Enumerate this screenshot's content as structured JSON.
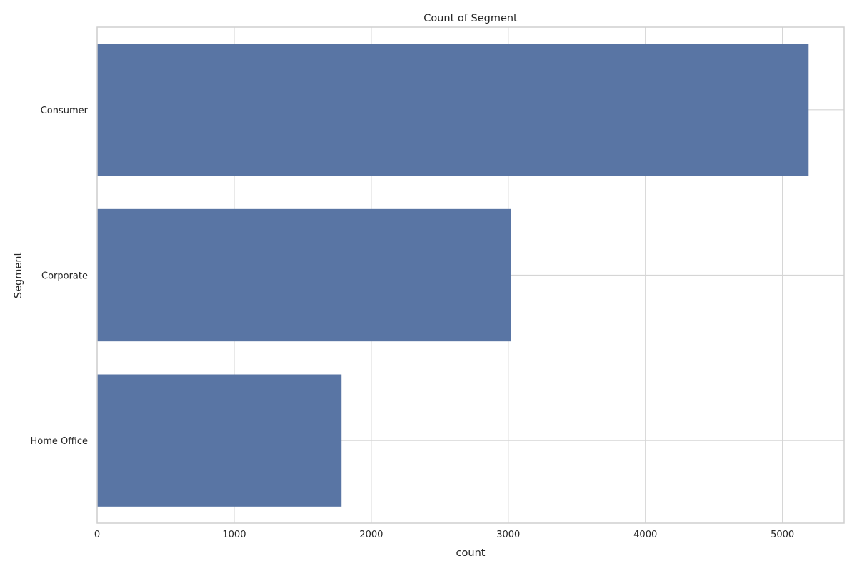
{
  "chart_data": {
    "type": "bar",
    "orientation": "horizontal",
    "title": "Count of Segment",
    "xlabel": "count",
    "ylabel": "Segment",
    "categories": [
      "Consumer",
      "Corporate",
      "Home Office"
    ],
    "values": [
      5191,
      3020,
      1783
    ],
    "xlim": [
      0,
      5450
    ],
    "xticks": [
      0,
      1000,
      2000,
      3000,
      4000,
      5000
    ],
    "xtick_labels": [
      "0",
      "1000",
      "2000",
      "3000",
      "4000",
      "5000"
    ],
    "grid": true,
    "bar_color": "#5975a4"
  }
}
